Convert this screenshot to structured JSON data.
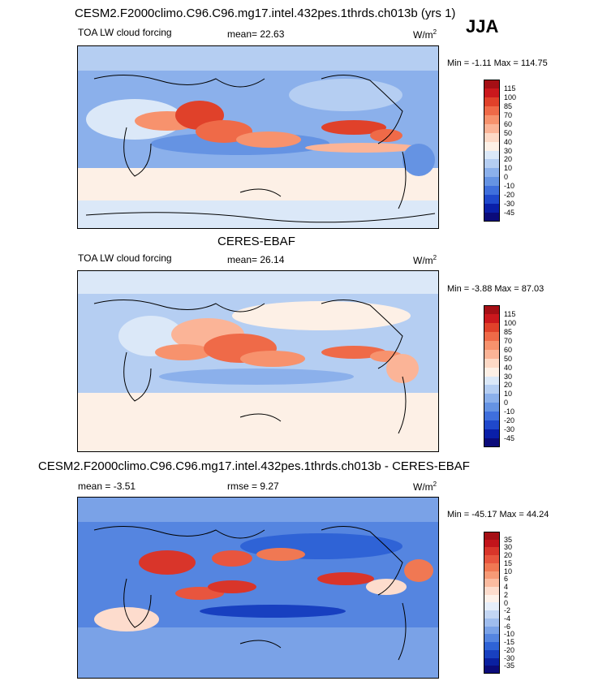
{
  "header": {
    "title": "CESM2.F2000climo.C96.C96.mg17.intel.432pes.1thrds.ch013b (yrs 1)",
    "season": "JJA"
  },
  "panel1": {
    "variable": "TOA LW cloud forcing",
    "mean_label": "mean=",
    "mean": "22.63",
    "units": "W/m",
    "units_exp": "2",
    "minmax": "Min = -1.11 Max = 114.75"
  },
  "panel2": {
    "title": "CERES-EBAF",
    "variable": "TOA LW cloud forcing",
    "mean_label": "mean=",
    "mean": "26.14",
    "units": "W/m",
    "units_exp": "2",
    "minmax": "Min = -3.88 Max = 87.03"
  },
  "panel3": {
    "title": "CESM2.F2000climo.C96.C96.mg17.intel.432pes.1thrds.ch013b - CERES-EBAF",
    "mean_label": "mean =",
    "mean": "-3.51",
    "rmse_label": "rmse =",
    "rmse": "9.27",
    "units": "W/m",
    "units_exp": "2",
    "minmax": "Min = -45.17 Max = 44.24"
  },
  "chart_data": [
    {
      "type": "heatmap",
      "title": "CESM2.F2000climo.C96.C96.mg17.intel.432pes.1thrds.ch013b (yrs 1)",
      "variable": "TOA LW cloud forcing",
      "mean": 22.63,
      "min": -1.11,
      "max": 114.75,
      "units": "W/m2",
      "colorbar_levels": [
        "115",
        "100",
        "85",
        "70",
        "60",
        "50",
        "40",
        "30",
        "20",
        "10",
        "0",
        "-10",
        "-20",
        "-30",
        "-45"
      ],
      "colorbar_colors": [
        "#a50f15",
        "#cb181d",
        "#e0412a",
        "#ef6a48",
        "#f7926d",
        "#fbb497",
        "#fdd9c6",
        "#fdf0e6",
        "#dbe8f8",
        "#b5cef2",
        "#8bb0eb",
        "#6593e3",
        "#3f6fdc",
        "#1f48cc",
        "#0a1fa8",
        "#0b0b7a"
      ]
    },
    {
      "type": "heatmap",
      "title": "CERES-EBAF",
      "variable": "TOA LW cloud forcing",
      "mean": 26.14,
      "min": -3.88,
      "max": 87.03,
      "units": "W/m2",
      "colorbar_levels": [
        "115",
        "100",
        "85",
        "70",
        "60",
        "50",
        "40",
        "30",
        "20",
        "10",
        "0",
        "-10",
        "-20",
        "-30",
        "-45"
      ],
      "colorbar_colors": [
        "#a50f15",
        "#cb181d",
        "#e0412a",
        "#ef6a48",
        "#f7926d",
        "#fbb497",
        "#fdd9c6",
        "#fdf0e6",
        "#dbe8f8",
        "#b5cef2",
        "#8bb0eb",
        "#6593e3",
        "#3f6fdc",
        "#1f48cc",
        "#0a1fa8",
        "#0b0b7a"
      ]
    },
    {
      "type": "heatmap",
      "title": "CESM2.F2000climo.C96.C96.mg17.intel.432pes.1thrds.ch013b - CERES-EBAF",
      "mean": -3.51,
      "rmse": 9.27,
      "min": -45.17,
      "max": 44.24,
      "units": "W/m2",
      "colorbar_levels": [
        "35",
        "30",
        "20",
        "15",
        "10",
        "6",
        "4",
        "2",
        "0",
        "-2",
        "-4",
        "-6",
        "-10",
        "-15",
        "-20",
        "-30",
        "-35"
      ],
      "colorbar_colors": [
        "#a50f15",
        "#c2141b",
        "#d9352a",
        "#e8553e",
        "#f07853",
        "#f79a76",
        "#fbbba0",
        "#fddccd",
        "#fdf1ea",
        "#e6eefa",
        "#c3d6f4",
        "#9fbdee",
        "#7aa2e7",
        "#5585e0",
        "#2f63d6",
        "#1840c0",
        "#0a20a0",
        "#0b0b7a"
      ]
    }
  ]
}
